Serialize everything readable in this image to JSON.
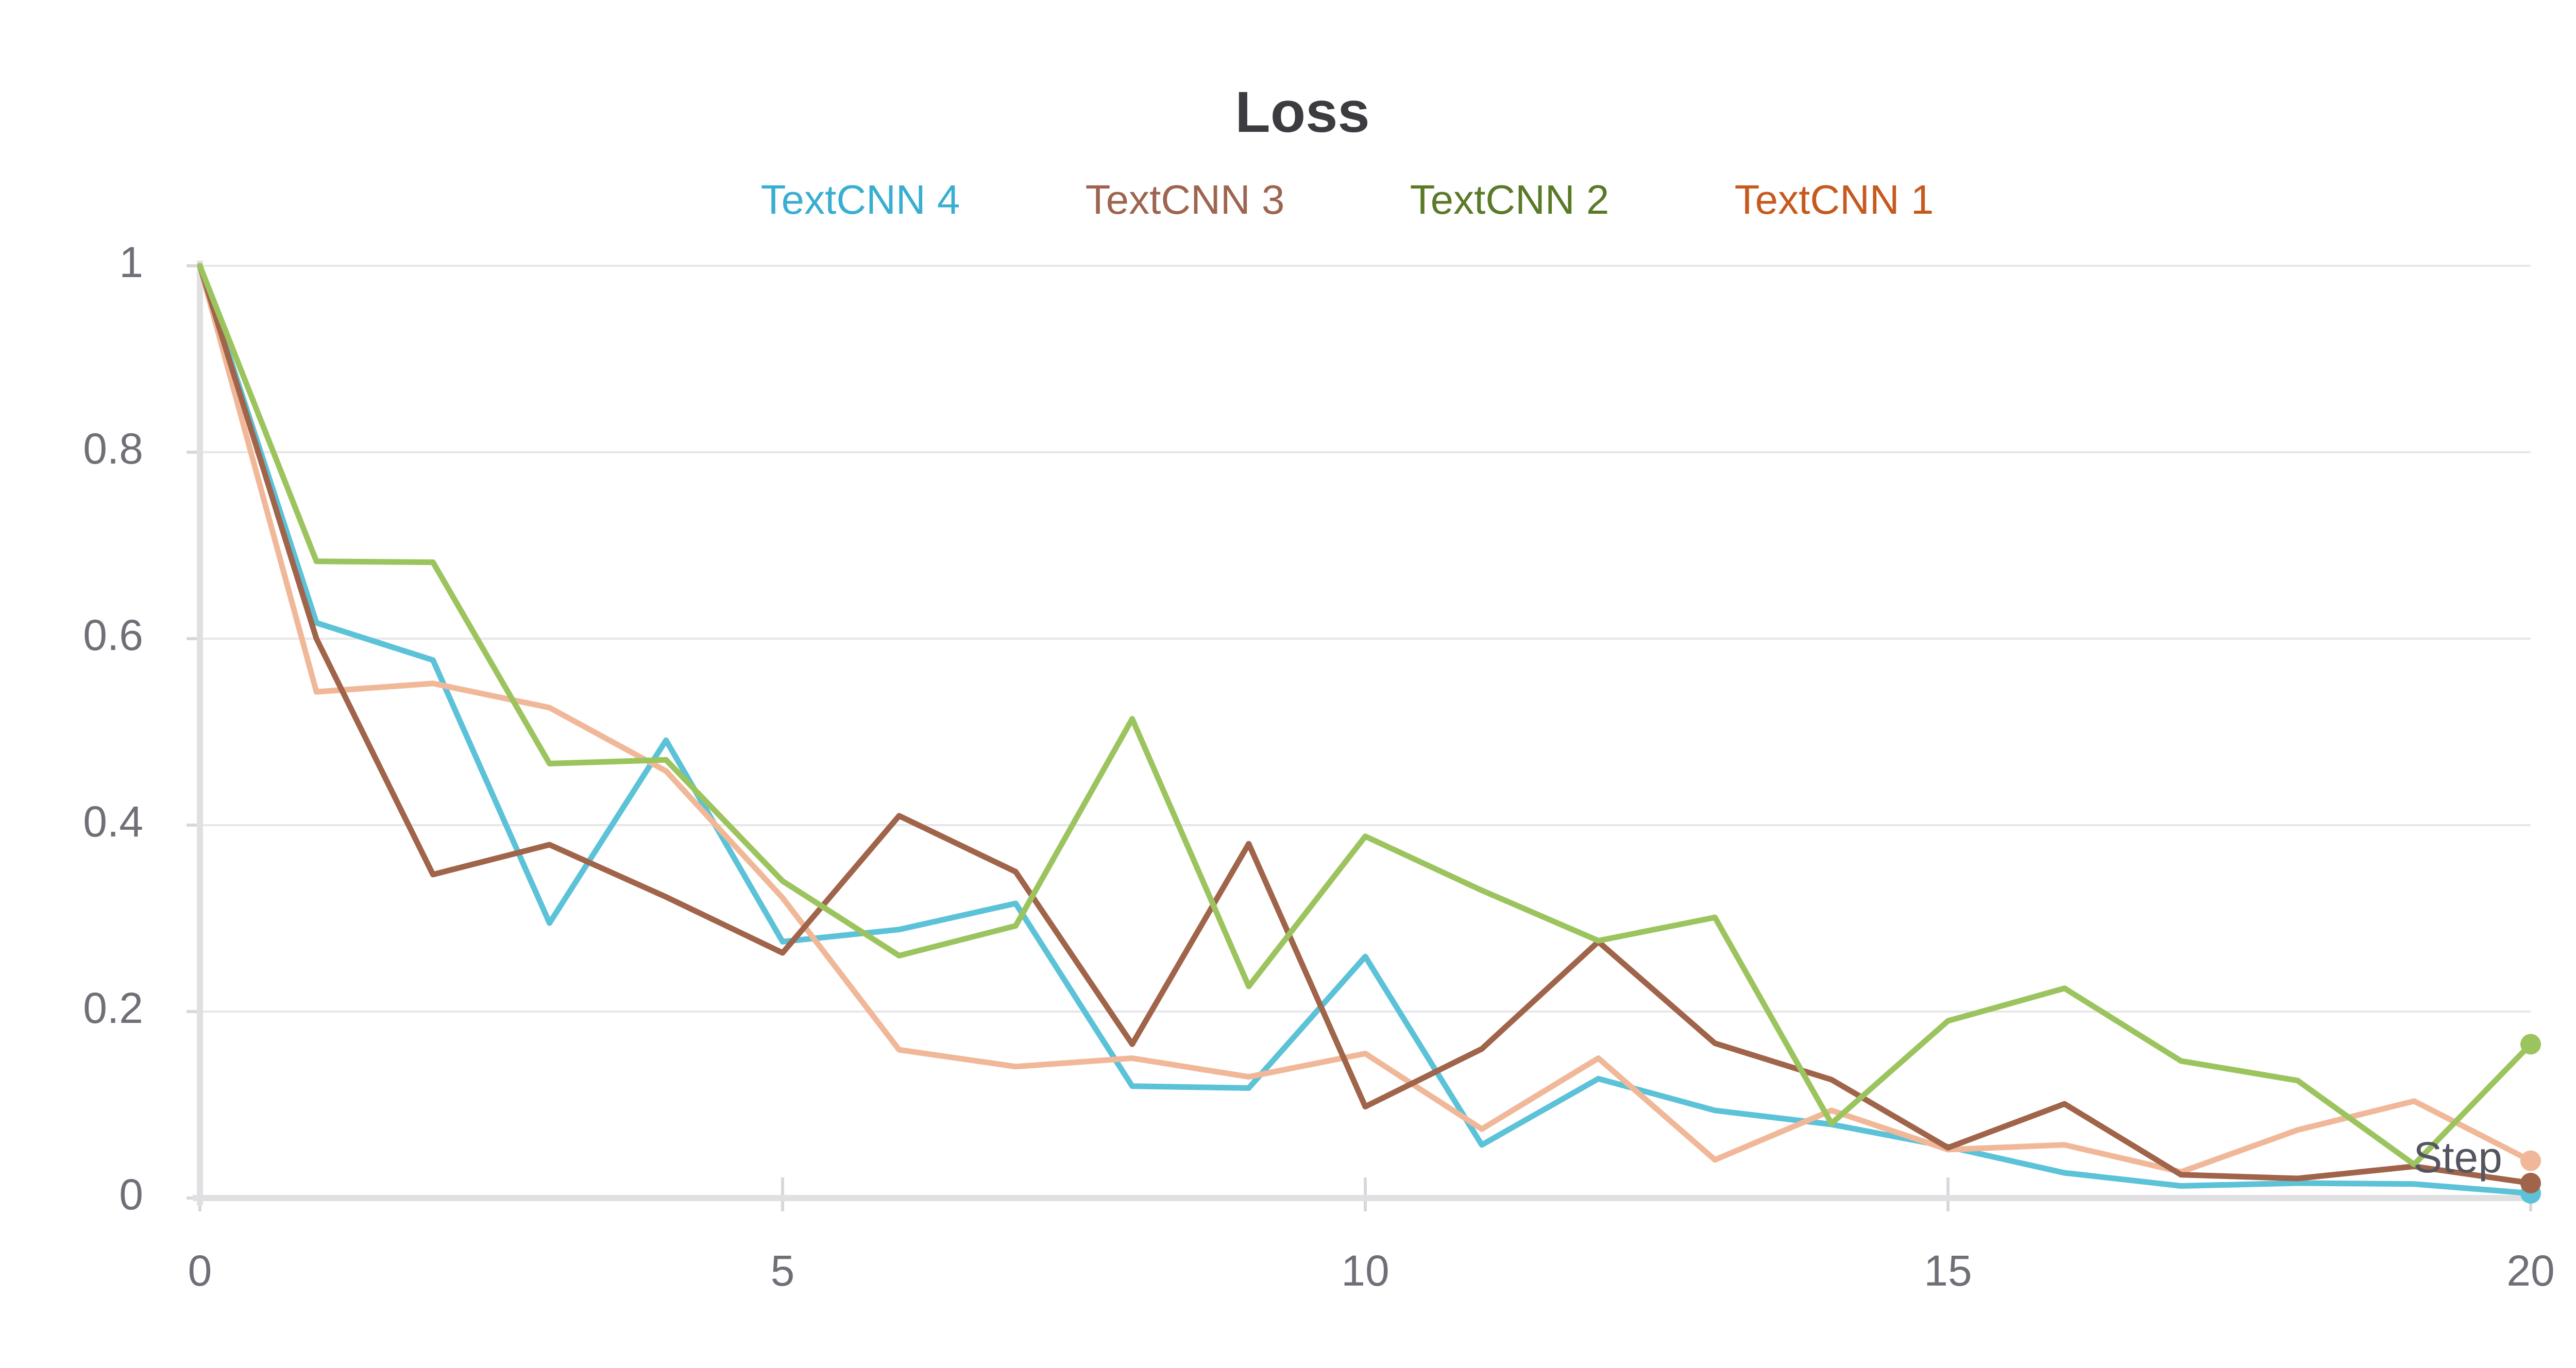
{
  "chart_data": {
    "type": "line",
    "title": "Loss",
    "xlabel": "Step",
    "ylabel": "",
    "xlim": [
      0,
      20
    ],
    "ylim": [
      0,
      1
    ],
    "x_ticks": [
      "0",
      "5",
      "10",
      "15",
      "20"
    ],
    "y_ticks": [
      "0",
      "0.2",
      "0.4",
      "0.6",
      "0.8",
      "1"
    ],
    "grid": true,
    "legend_position": "top-center",
    "x": [
      0,
      1,
      2,
      3,
      4,
      5,
      6,
      7,
      8,
      9,
      10,
      11,
      12,
      13,
      14,
      15,
      16,
      17,
      18,
      19,
      20
    ],
    "series": [
      {
        "name": "TextCNN 4",
        "color": "#5bc2d8",
        "label_color": "#3aaed0",
        "values": [
          1.0,
          0.617,
          0.577,
          0.295,
          0.491,
          0.275,
          0.288,
          0.316,
          0.12,
          0.118,
          0.259,
          0.057,
          0.128,
          0.094,
          0.079,
          0.055,
          0.027,
          0.013,
          0.016,
          0.015,
          0.005
        ]
      },
      {
        "name": "TextCNN 3",
        "color": "#a0644a",
        "label_color": "#9d6550",
        "values": [
          1.0,
          0.6,
          0.347,
          0.379,
          0.323,
          0.263,
          0.41,
          0.35,
          0.165,
          0.38,
          0.098,
          0.16,
          0.275,
          0.166,
          0.127,
          0.054,
          0.101,
          0.025,
          0.021,
          0.034,
          0.016
        ]
      },
      {
        "name": "TextCNN 2",
        "color": "#9cc45e",
        "label_color": "#5a7a28",
        "values": [
          1.0,
          0.683,
          0.682,
          0.466,
          0.47,
          0.34,
          0.26,
          0.292,
          0.514,
          0.227,
          0.388,
          0.33,
          0.276,
          0.301,
          0.08,
          0.19,
          0.225,
          0.147,
          0.126,
          0.036,
          0.165
        ]
      },
      {
        "name": "TextCNN 1",
        "color": "#f0b898",
        "label_color": "#c65a1e",
        "values": [
          1.0,
          0.543,
          0.552,
          0.526,
          0.458,
          0.322,
          0.159,
          0.141,
          0.15,
          0.13,
          0.155,
          0.074,
          0.15,
          0.041,
          0.094,
          0.052,
          0.057,
          0.028,
          0.073,
          0.104,
          0.04
        ]
      }
    ],
    "end_markers": true
  }
}
